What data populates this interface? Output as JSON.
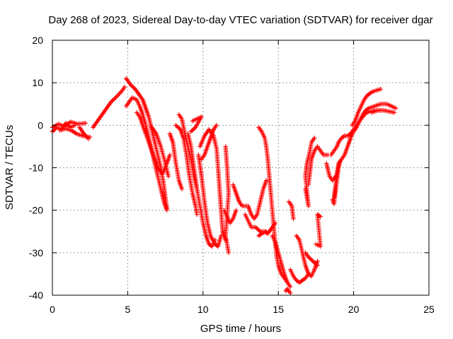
{
  "chart_data": {
    "type": "scatter",
    "title": "Day 268 of 2023, Sidereal Day-to-day VTEC variation (SDTVAR) for receiver dgar",
    "xlabel": "GPS time / hours",
    "ylabel": "SDTVAR / TECUs",
    "xlim": [
      0,
      25
    ],
    "ylim": [
      -40,
      20
    ],
    "xticks": [
      0,
      5,
      10,
      15,
      20,
      25
    ],
    "yticks": [
      -40,
      -30,
      -20,
      -10,
      0,
      10,
      20
    ],
    "grid": true,
    "marker": "+",
    "color": "#ff0000",
    "tracks": [
      [
        [
          0.0,
          -1.5
        ],
        [
          0.3,
          -0.5
        ],
        [
          0.6,
          -1.0
        ],
        [
          0.9,
          0.5
        ],
        [
          1.2,
          -0.5
        ],
        [
          1.5,
          0.0
        ]
      ],
      [
        [
          0.0,
          -0.5
        ],
        [
          0.4,
          0.3
        ],
        [
          0.8,
          -0.3
        ],
        [
          1.2,
          0.8
        ],
        [
          1.7,
          0.3
        ],
        [
          2.2,
          0.5
        ]
      ],
      [
        [
          0.5,
          -1.2
        ],
        [
          0.9,
          -0.8
        ],
        [
          1.3,
          -1.3
        ],
        [
          1.6,
          -2.0
        ],
        [
          2.0,
          -2.5
        ],
        [
          2.5,
          -2.8
        ]
      ],
      [
        [
          1.8,
          -0.5
        ],
        [
          2.1,
          -2.0
        ],
        [
          2.4,
          -3.2
        ]
      ],
      [
        [
          2.7,
          -0.5
        ],
        [
          3.0,
          1.0
        ],
        [
          3.3,
          2.5
        ],
        [
          3.6,
          4.0
        ],
        [
          3.9,
          5.5
        ],
        [
          4.2,
          6.5
        ],
        [
          4.6,
          8.0
        ],
        [
          4.8,
          9.0
        ]
      ],
      [
        [
          4.9,
          11.0
        ],
        [
          5.0,
          10.5
        ],
        [
          5.2,
          9.5
        ],
        [
          5.5,
          8.5
        ],
        [
          5.8,
          7.0
        ],
        [
          6.0,
          6.0
        ],
        [
          6.2,
          4.0
        ],
        [
          6.4,
          2.0
        ],
        [
          6.6,
          -1.0
        ],
        [
          6.8,
          -4.0
        ],
        [
          7.0,
          -7.0
        ],
        [
          7.2,
          -10.0
        ],
        [
          7.4,
          -14.0
        ],
        [
          7.5,
          -17.0
        ],
        [
          7.6,
          -19.5
        ]
      ],
      [
        [
          4.9,
          4.5
        ],
        [
          5.1,
          5.5
        ],
        [
          5.3,
          6.5
        ],
        [
          5.6,
          6.0
        ],
        [
          5.8,
          4.5
        ],
        [
          6.0,
          2.5
        ],
        [
          6.2,
          0.0
        ],
        [
          6.4,
          -3.0
        ],
        [
          6.6,
          -6.0
        ],
        [
          6.8,
          -9.0
        ],
        [
          7.0,
          -12.0
        ],
        [
          7.2,
          -15.0
        ],
        [
          7.4,
          -18.0
        ],
        [
          7.6,
          -20.0
        ]
      ],
      [
        [
          5.6,
          3.0
        ],
        [
          5.8,
          2.0
        ],
        [
          6.0,
          0.0
        ],
        [
          6.2,
          -2.0
        ],
        [
          6.5,
          -5.0
        ],
        [
          6.8,
          -8.0
        ],
        [
          7.0,
          -10.0
        ],
        [
          7.3,
          -11.5
        ],
        [
          7.6,
          -9.0
        ],
        [
          7.8,
          -7.0
        ]
      ],
      [
        [
          6.6,
          -0.5
        ],
        [
          6.9,
          -2.0
        ],
        [
          7.2,
          -5.0
        ],
        [
          7.5,
          -9.0
        ],
        [
          7.7,
          -12.0
        ]
      ],
      [
        [
          7.8,
          -2.0
        ],
        [
          8.0,
          -4.0
        ],
        [
          8.2,
          -9.0
        ],
        [
          8.4,
          -13.0
        ],
        [
          8.6,
          -15.0
        ]
      ],
      [
        [
          8.2,
          0.0
        ],
        [
          8.5,
          -1.0
        ],
        [
          8.7,
          -3.0
        ],
        [
          8.9,
          -7.0
        ],
        [
          9.1,
          -12.0
        ],
        [
          9.3,
          -16.0
        ],
        [
          9.5,
          -19.0
        ],
        [
          9.6,
          -21.0
        ]
      ],
      [
        [
          8.4,
          2.5
        ],
        [
          8.6,
          1.5
        ],
        [
          8.8,
          -2.0
        ],
        [
          9.0,
          -5.0
        ],
        [
          9.2,
          -8.0
        ],
        [
          9.4,
          -12.0
        ],
        [
          9.6,
          -15.0
        ]
      ],
      [
        [
          9.0,
          -2.0
        ],
        [
          9.2,
          -5.0
        ],
        [
          9.4,
          -10.0
        ],
        [
          9.6,
          -15.0
        ],
        [
          9.8,
          -19.0
        ],
        [
          10.0,
          -23.0
        ],
        [
          10.2,
          -26.0
        ],
        [
          10.4,
          -28.0
        ],
        [
          10.6,
          -28.5
        ],
        [
          10.8,
          -27.0
        ]
      ],
      [
        [
          9.7,
          -7.0
        ],
        [
          9.9,
          -12.0
        ],
        [
          10.1,
          -18.0
        ],
        [
          10.3,
          -23.0
        ],
        [
          10.5,
          -26.0
        ],
        [
          10.8,
          -28.0
        ],
        [
          11.0,
          -28.5
        ],
        [
          11.2,
          -26.0
        ]
      ],
      [
        [
          9.8,
          -5.0
        ],
        [
          10.1,
          -2.5
        ],
        [
          10.4,
          -1.0
        ],
        [
          10.7,
          -2.5
        ],
        [
          10.9,
          -5.5
        ],
        [
          11.0,
          -10.0
        ],
        [
          11.1,
          -15.0
        ],
        [
          11.2,
          -20.0
        ],
        [
          11.3,
          -25.0
        ],
        [
          11.5,
          -27.0
        ]
      ],
      [
        [
          10.9,
          0.0
        ],
        [
          10.7,
          -1.0
        ],
        [
          10.5,
          -3.0
        ],
        [
          10.3,
          -5.0
        ],
        [
          10.1,
          -7.0
        ],
        [
          9.9,
          -8.0
        ]
      ],
      [
        [
          9.3,
          1.0
        ],
        [
          9.6,
          1.5
        ],
        [
          9.9,
          2.0
        ],
        [
          9.5,
          -0.5
        ],
        [
          9.2,
          -1.5
        ]
      ],
      [
        [
          11.5,
          -5.0
        ],
        [
          11.6,
          -10.0
        ],
        [
          11.7,
          -16.0
        ],
        [
          11.5,
          -26.0
        ],
        [
          11.7,
          -30.0
        ]
      ],
      [
        [
          11.4,
          -20.0
        ],
        [
          11.6,
          -21.5
        ],
        [
          11.8,
          -23.0
        ],
        [
          12.0,
          -22.0
        ],
        [
          12.2,
          -20.0
        ]
      ],
      [
        [
          12.0,
          -14.0
        ],
        [
          12.2,
          -16.0
        ],
        [
          12.4,
          -18.0
        ],
        [
          12.6,
          -19.0
        ],
        [
          12.8,
          -19.0
        ],
        [
          13.0,
          -19.0
        ],
        [
          13.2,
          -21.0
        ],
        [
          13.4,
          -22.0
        ],
        [
          13.6,
          -21.0
        ],
        [
          13.8,
          -18.0
        ],
        [
          14.0,
          -15.0
        ],
        [
          14.2,
          -13.0
        ]
      ],
      [
        [
          12.8,
          -21.0
        ],
        [
          13.0,
          -22.5
        ],
        [
          13.2,
          -24.0
        ],
        [
          13.5,
          -24.0
        ],
        [
          13.8,
          -25.0
        ],
        [
          14.1,
          -25.0
        ],
        [
          14.3,
          -25.5
        ],
        [
          14.6,
          -24.0
        ],
        [
          14.8,
          -23.0
        ]
      ],
      [
        [
          13.7,
          -26.0
        ],
        [
          13.9,
          -25.5
        ],
        [
          14.2,
          -25.0
        ]
      ],
      [
        [
          13.7,
          -0.5
        ],
        [
          13.9,
          -1.5
        ],
        [
          14.1,
          -3.0
        ],
        [
          14.2,
          -5.0
        ],
        [
          14.3,
          -8.0
        ],
        [
          14.4,
          -12.0
        ],
        [
          14.5,
          -16.0
        ],
        [
          14.6,
          -20.0
        ],
        [
          14.7,
          -24.0
        ],
        [
          14.8,
          -28.0
        ],
        [
          14.9,
          -31.0
        ],
        [
          15.0,
          -33.0
        ],
        [
          15.2,
          -35.0
        ],
        [
          15.4,
          -36.0
        ],
        [
          15.6,
          -37.0
        ],
        [
          15.8,
          -38.0
        ]
      ],
      [
        [
          14.6,
          -26.0
        ],
        [
          14.8,
          -27.5
        ],
        [
          15.0,
          -30.0
        ],
        [
          15.2,
          -32.5
        ],
        [
          15.4,
          -35.0
        ],
        [
          15.6,
          -37.0
        ]
      ],
      [
        [
          15.5,
          -39.0
        ],
        [
          15.6,
          -38.5
        ],
        [
          15.8,
          -39.5
        ]
      ],
      [
        [
          15.7,
          -18.0
        ],
        [
          15.9,
          -19.0
        ],
        [
          16.0,
          -22.0
        ]
      ],
      [
        [
          16.2,
          -26.0
        ],
        [
          16.4,
          -27.0
        ],
        [
          16.6,
          -30.0
        ],
        [
          16.8,
          -33.0
        ],
        [
          17.0,
          -35.0
        ],
        [
          17.2,
          -35.5
        ],
        [
          17.4,
          -34.0
        ],
        [
          17.6,
          -32.0
        ]
      ],
      [
        [
          15.8,
          -34.0
        ],
        [
          16.0,
          -35.5
        ],
        [
          16.2,
          -36.5
        ],
        [
          16.4,
          -37.0
        ],
        [
          16.6,
          -36.5
        ],
        [
          16.8,
          -36.0
        ],
        [
          17.0,
          -35.0
        ]
      ],
      [
        [
          16.8,
          -30.0
        ],
        [
          17.0,
          -31.0
        ],
        [
          17.3,
          -32.0
        ],
        [
          17.6,
          -33.0
        ]
      ],
      [
        [
          17.5,
          -28.0
        ],
        [
          17.8,
          -28.5
        ],
        [
          17.6,
          -21.0
        ],
        [
          17.8,
          -21.5
        ]
      ],
      [
        [
          16.8,
          -15.0
        ],
        [
          16.9,
          -17.0
        ],
        [
          17.0,
          -19.0
        ],
        [
          16.8,
          -12.0
        ],
        [
          16.9,
          -9.0
        ],
        [
          17.1,
          -6.0
        ],
        [
          17.2,
          -4.0
        ],
        [
          17.4,
          -3.0
        ]
      ],
      [
        [
          17.0,
          -14.0
        ],
        [
          17.1,
          -11.0
        ],
        [
          17.2,
          -8.0
        ],
        [
          17.4,
          -6.0
        ],
        [
          17.6,
          -5.0
        ],
        [
          17.8,
          -6.0
        ],
        [
          18.0,
          -7.0
        ],
        [
          18.3,
          -7.0
        ]
      ],
      [
        [
          18.2,
          -9.0
        ],
        [
          18.4,
          -12.0
        ],
        [
          18.6,
          -13.0
        ],
        [
          18.8,
          -12.0
        ]
      ],
      [
        [
          18.5,
          -7.0
        ],
        [
          18.7,
          -6.0
        ],
        [
          18.9,
          -5.0
        ],
        [
          19.0,
          -4.0
        ],
        [
          19.2,
          -3.0
        ],
        [
          19.4,
          -2.5
        ],
        [
          19.6,
          -2.5
        ],
        [
          19.8,
          -2.0
        ],
        [
          20.0,
          -1.0
        ],
        [
          20.2,
          0.0
        ],
        [
          20.4,
          1.0
        ],
        [
          20.6,
          2.0
        ],
        [
          20.8,
          2.8
        ],
        [
          21.1,
          3.3
        ],
        [
          21.4,
          3.5
        ],
        [
          21.8,
          3.5
        ]
      ],
      [
        [
          18.7,
          -17.0
        ],
        [
          18.8,
          -14.0
        ],
        [
          18.9,
          -11.0
        ],
        [
          19.0,
          -9.0
        ],
        [
          19.2,
          -8.0
        ],
        [
          19.4,
          -7.0
        ],
        [
          19.6,
          -5.0
        ],
        [
          19.8,
          -3.0
        ],
        [
          20.0,
          -1.5
        ],
        [
          20.2,
          -0.5
        ],
        [
          20.4,
          1.0
        ],
        [
          20.6,
          2.5
        ],
        [
          20.8,
          3.5
        ],
        [
          21.0,
          4.0
        ],
        [
          21.4,
          4.5
        ],
        [
          21.8,
          5.0
        ],
        [
          22.2,
          5.0
        ],
        [
          22.5,
          4.5
        ],
        [
          22.8,
          4.0
        ]
      ],
      [
        [
          19.9,
          0.0
        ],
        [
          20.1,
          1.0
        ],
        [
          20.3,
          3.0
        ],
        [
          20.5,
          4.5
        ],
        [
          20.7,
          6.0
        ],
        [
          20.9,
          7.0
        ],
        [
          21.2,
          7.8
        ],
        [
          21.5,
          8.2
        ],
        [
          21.8,
          8.5
        ]
      ],
      [
        [
          21.2,
          3.0
        ],
        [
          21.6,
          3.5
        ],
        [
          22.0,
          3.5
        ],
        [
          22.4,
          3.2
        ],
        [
          22.7,
          3.0
        ]
      ],
      [
        [
          18.6,
          -17.5
        ],
        [
          18.7,
          -18.5
        ],
        [
          19.0,
          -10.0
        ],
        [
          19.1,
          -8.5
        ]
      ]
    ]
  }
}
